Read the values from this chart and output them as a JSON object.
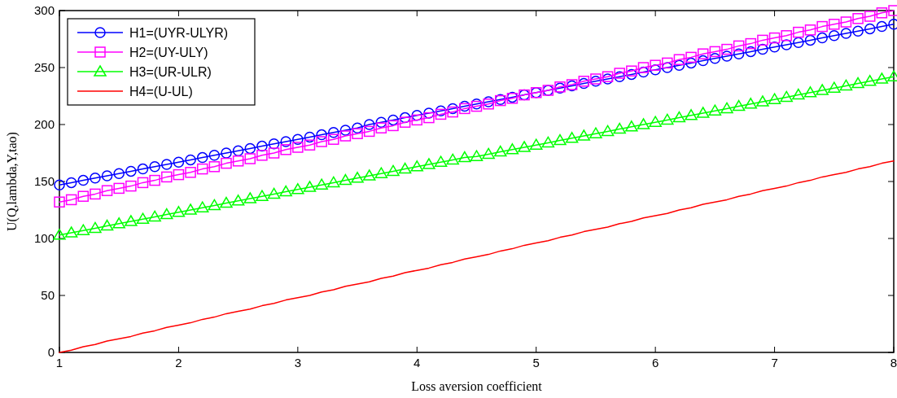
{
  "chart_data": {
    "type": "line",
    "xlabel": "Loss aversion coefficient",
    "ylabel": "U(Q,lambda,Y,tao)",
    "x": [
      1,
      1.1,
      1.2,
      1.3,
      1.4,
      1.5,
      1.6,
      1.7,
      1.8,
      1.9,
      2,
      2.1,
      2.2,
      2.3,
      2.4,
      2.5,
      2.6,
      2.7,
      2.8,
      2.9,
      3,
      3.1,
      3.2,
      3.3,
      3.4,
      3.5,
      3.6,
      3.7,
      3.8,
      3.9,
      4,
      4.1,
      4.2,
      4.3,
      4.4,
      4.5,
      4.6,
      4.7,
      4.8,
      4.9,
      5,
      5.1,
      5.2,
      5.3,
      5.4,
      5.5,
      5.6,
      5.7,
      5.8,
      5.9,
      6,
      6.1,
      6.2,
      6.3,
      6.4,
      6.5,
      6.6,
      6.7,
      6.8,
      6.9,
      7,
      7.1,
      7.2,
      7.3,
      7.4,
      7.5,
      7.6,
      7.7,
      7.8,
      7.9,
      8
    ],
    "series": [
      {
        "name": "H1=(UYR-ULYR)",
        "color": "#0000ff",
        "marker": "circle",
        "values": [
          147,
          149,
          151,
          153,
          155,
          157,
          159,
          161,
          163,
          165,
          167,
          169,
          171,
          173,
          175,
          177,
          179,
          181,
          183,
          185,
          187,
          189,
          191,
          193,
          195,
          197,
          200,
          202,
          204,
          206,
          208,
          210,
          212,
          214,
          216,
          218,
          220,
          222,
          224,
          226,
          228,
          230,
          232,
          234,
          236,
          238,
          240,
          242,
          244,
          246,
          248,
          250,
          252,
          254,
          256,
          258,
          260,
          262,
          264,
          266,
          268,
          270,
          272,
          274,
          276,
          278,
          280,
          282,
          284,
          286,
          288
        ]
      },
      {
        "name": "H2=(UY-ULY)",
        "color": "#ff00ff",
        "marker": "square",
        "values": [
          132,
          134,
          137,
          139,
          142,
          144,
          146,
          149,
          151,
          154,
          156,
          158,
          161,
          163,
          166,
          168,
          170,
          173,
          175,
          178,
          180,
          182,
          185,
          187,
          190,
          192,
          194,
          197,
          199,
          202,
          204,
          206,
          209,
          211,
          214,
          216,
          218,
          221,
          223,
          226,
          228,
          230,
          233,
          235,
          238,
          240,
          242,
          245,
          247,
          250,
          252,
          254,
          257,
          259,
          262,
          264,
          266,
          269,
          271,
          274,
          276,
          278,
          281,
          283,
          286,
          288,
          290,
          293,
          295,
          298,
          300
        ]
      },
      {
        "name": "H3=(UR-ULR)",
        "color": "#00ff00",
        "marker": "triangle",
        "values": [
          103,
          105,
          107,
          109,
          111,
          113,
          115,
          117,
          119,
          121,
          123,
          125,
          127,
          129,
          131,
          133,
          135,
          137,
          139,
          141,
          143,
          145,
          147,
          149,
          151,
          153,
          155,
          157,
          159,
          161,
          163,
          165,
          167,
          169,
          171,
          172,
          174,
          176,
          178,
          180,
          182,
          184,
          186,
          188,
          190,
          192,
          194,
          196,
          198,
          200,
          202,
          204,
          206,
          208,
          210,
          212,
          214,
          216,
          218,
          220,
          222,
          224,
          226,
          228,
          230,
          232,
          234,
          236,
          238,
          240,
          242
        ]
      },
      {
        "name": "H4=(U-UL)",
        "color": "#ff0000",
        "marker": "none",
        "values": [
          0,
          2,
          5,
          7,
          10,
          12,
          14,
          17,
          19,
          22,
          24,
          26,
          29,
          31,
          34,
          36,
          38,
          41,
          43,
          46,
          48,
          50,
          53,
          55,
          58,
          60,
          62,
          65,
          67,
          70,
          72,
          74,
          77,
          79,
          82,
          84,
          86,
          89,
          91,
          94,
          96,
          98,
          101,
          103,
          106,
          108,
          110,
          113,
          115,
          118,
          120,
          122,
          125,
          127,
          130,
          132,
          134,
          137,
          139,
          142,
          144,
          146,
          149,
          151,
          154,
          156,
          158,
          161,
          163,
          166,
          168
        ]
      }
    ],
    "xlim": [
      1,
      8
    ],
    "xticks": [
      1,
      2,
      3,
      4,
      5,
      6,
      7,
      8
    ],
    "ylim": [
      0,
      300
    ],
    "yticks": [
      0,
      50,
      100,
      150,
      200,
      250,
      300
    ],
    "legend": "top left",
    "line_style": "solid"
  }
}
